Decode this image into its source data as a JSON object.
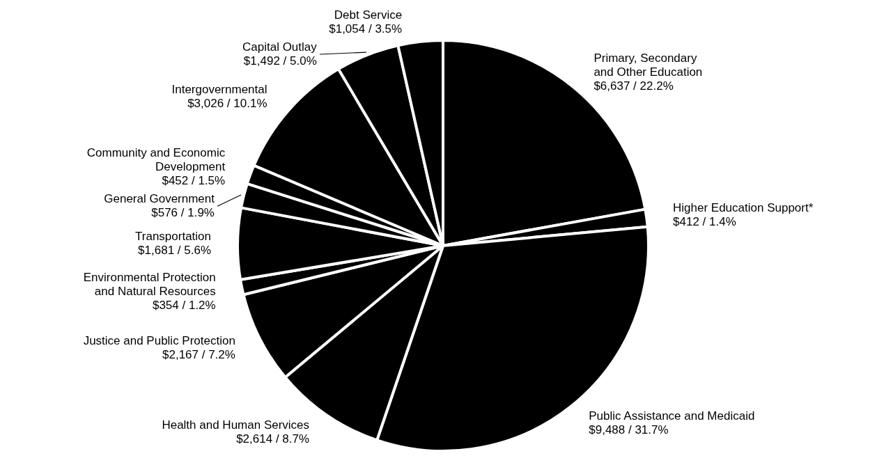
{
  "chart_data": {
    "type": "pie",
    "categories": [
      "Primary, Secondary\nand Other Education",
      "Higher Education Support*",
      "Public Assistance and Medicaid",
      "Health and Human Services",
      "Justice and Public Protection",
      "Environmental Protection\nand Natural Resources",
      "Transportation",
      "General Government",
      "Community and Economic\nDevelopment",
      "Intergovernmental",
      "Capital Outlay",
      "Debt Service"
    ],
    "values": [
      6637,
      412,
      9488,
      2614,
      2167,
      354,
      1681,
      576,
      452,
      3026,
      1492,
      1054
    ],
    "value_labels": [
      "$6,637 / 22.2%",
      "$412 / 1.4%",
      "$9,488 / 31.7%",
      "$2,614 / 8.7%",
      "$2,167 / 7.2%",
      "$354 / 1.2%",
      "$1,681 / 5.6%",
      "$576 / 1.9%",
      "$452 / 1.5%",
      "$3,026 / 10.1%",
      "$1,492 / 5.0%",
      "$1,054 / 3.5%"
    ],
    "colors": [
      "#000000",
      "#000000",
      "#000000",
      "#000000",
      "#000000",
      "#000000",
      "#000000",
      "#000000",
      "#000000",
      "#000000",
      "#000000",
      "#000000"
    ]
  }
}
